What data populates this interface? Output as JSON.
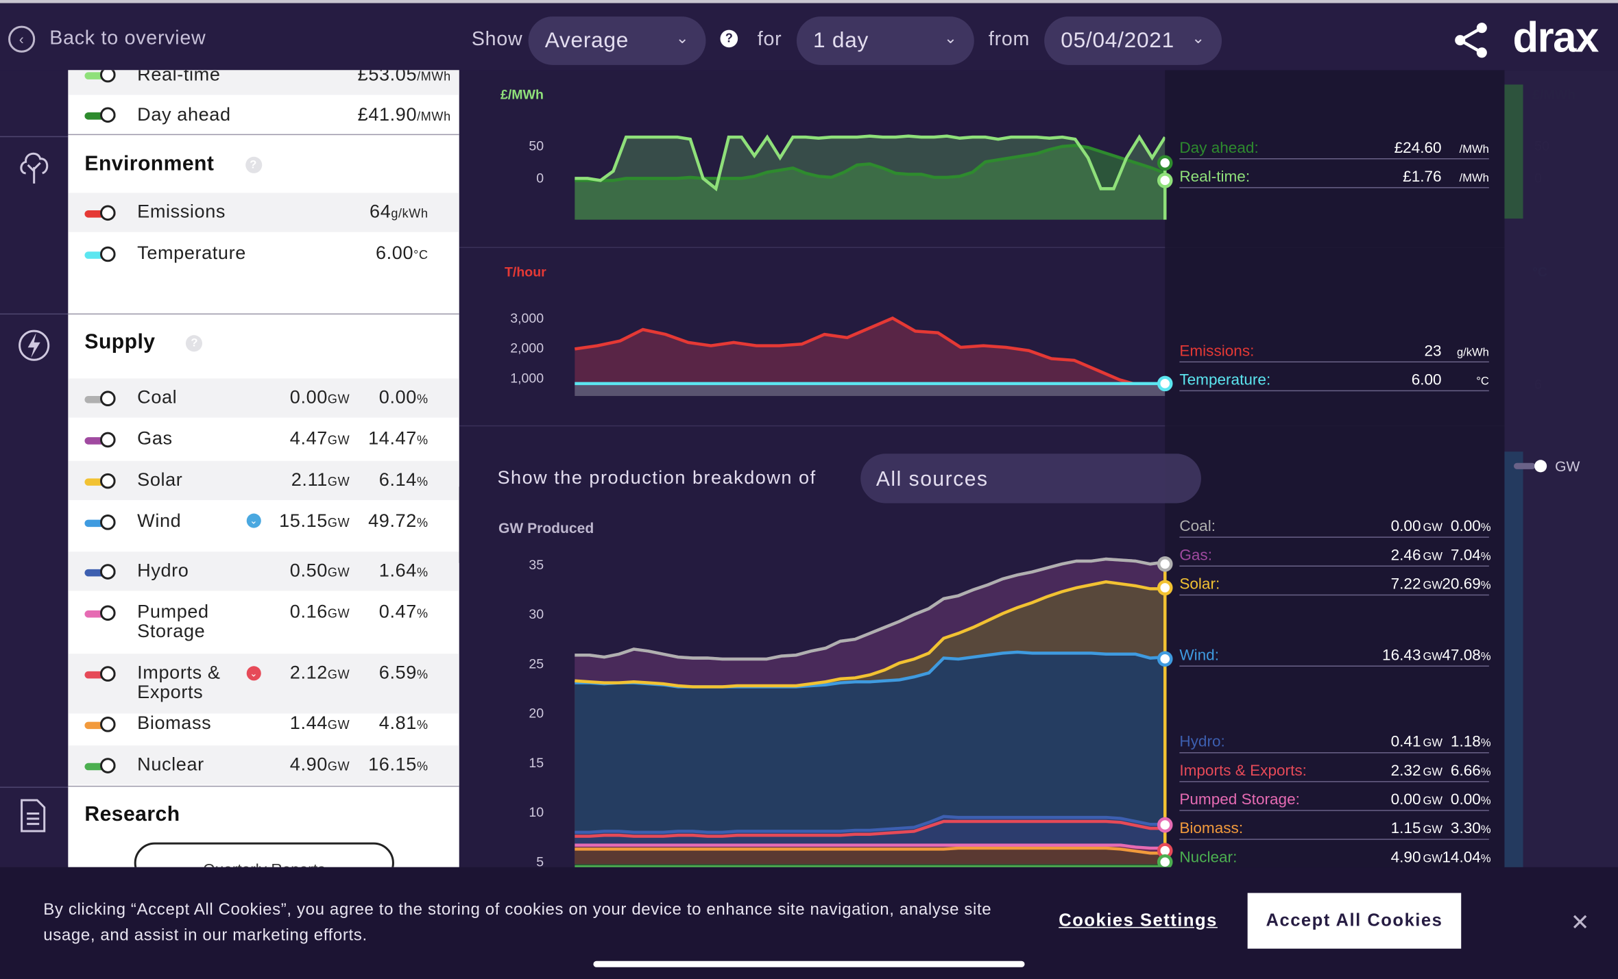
{
  "topbar": {
    "back": "Back to overview",
    "show": "Show",
    "show_value": "Average",
    "for": "for",
    "for_value": "1 day",
    "from": "from",
    "from_value": "05/04/2021",
    "logo": "drax",
    "icons": [
      "back-arrow-icon",
      "question-icon",
      "chevron-down-icon",
      "share-icon"
    ]
  },
  "market": {
    "items": [
      {
        "label": "Real-time",
        "value": "£53.05",
        "unit": "/MWh",
        "color": "#8fe07a"
      },
      {
        "label": "Day ahead",
        "value": "£41.90",
        "unit": "/MWh",
        "color": "#2e8b2e"
      }
    ]
  },
  "environment": {
    "title": "Environment",
    "items": [
      {
        "label": "Emissions",
        "value": "64",
        "unit": "g/kWh",
        "color": "#e53935"
      },
      {
        "label": "Temperature",
        "value": "6.00",
        "unit": "°C",
        "color": "#5ce6f0"
      }
    ]
  },
  "supply": {
    "title": "Supply",
    "unit": "GW",
    "pct": "%",
    "items": [
      {
        "label": "Coal",
        "gw": "0.00",
        "pct": "0.00",
        "color": "#b0b0b0"
      },
      {
        "label": "Gas",
        "gw": "4.47",
        "pct": "14.47",
        "color": "#a04aa0"
      },
      {
        "label": "Solar",
        "gw": "2.11",
        "pct": "6.14",
        "color": "#f2c232"
      },
      {
        "label": "Wind",
        "gw": "15.15",
        "pct": "49.72",
        "color": "#3f9be0"
      },
      {
        "label": "Hydro",
        "gw": "0.50",
        "pct": "1.64",
        "color": "#3d5fb0"
      },
      {
        "label": "Pumped\nStorage",
        "gw": "0.16",
        "pct": "0.47",
        "color": "#e66bb3"
      },
      {
        "label": "Imports &\nExports",
        "gw": "2.12",
        "pct": "6.59",
        "color": "#e64a58"
      },
      {
        "label": "Biomass",
        "gw": "1.44",
        "pct": "4.81",
        "color": "#f29a3c"
      },
      {
        "label": "Nuclear",
        "gw": "4.90",
        "pct": "16.15",
        "color": "#4caf50"
      }
    ]
  },
  "research": {
    "title": "Research",
    "button": "Quarterly Reports"
  },
  "price_chart": {
    "unit_left": "£/MWh",
    "unit_right": "£/MWh",
    "ticks": [
      "50",
      "0"
    ],
    "tooltip": [
      {
        "label": "Day ahead:",
        "value": "£24.60",
        "unit": "/MWh",
        "color": "#2e8b2e"
      },
      {
        "label": "Real-time:",
        "value": "£1.76",
        "unit": "/MWh",
        "color": "#8fe07a"
      }
    ]
  },
  "env_chart": {
    "unit_left": "T/hour",
    "unit_right": "°C",
    "ticks": [
      "3,000",
      "2,000",
      "1,000"
    ],
    "right_tick": "6",
    "tooltip": [
      {
        "label": "Emissions:",
        "value": "23",
        "unit": "g/kWh",
        "color": "#e53935"
      },
      {
        "label": "Temperature:",
        "value": "6.00",
        "unit": "°C",
        "color": "#5ce6f0"
      }
    ]
  },
  "breakdown": {
    "label": "Show the production breakdown of",
    "select": "All sources",
    "ylabel": "GW Produced",
    "toggle_label": "GW",
    "ticks": [
      "35",
      "30",
      "25",
      "20",
      "15",
      "10",
      "5"
    ],
    "tooltip": [
      {
        "label": "Coal:",
        "gw": "0.00",
        "pct": "0.00",
        "color": "#b0b0b0"
      },
      {
        "label": "Gas:",
        "gw": "2.46",
        "pct": "7.04",
        "color": "#a04aa0"
      },
      {
        "label": "Solar:",
        "gw": "7.22",
        "pct": "20.69",
        "color": "#f2c232"
      },
      {
        "label": "Wind:",
        "gw": "16.43",
        "pct": "47.08",
        "color": "#3f9be0"
      },
      {
        "label": "Hydro:",
        "gw": "0.41",
        "pct": "1.18",
        "color": "#3d5fb0"
      },
      {
        "label": "Imports & Exports:",
        "gw": "2.32",
        "pct": "6.66",
        "color": "#e64a58"
      },
      {
        "label": "Pumped Storage:",
        "gw": "0.00",
        "pct": "0.00",
        "color": "#e66bb3"
      },
      {
        "label": "Biomass:",
        "gw": "1.15",
        "pct": "3.30",
        "color": "#f29a3c"
      },
      {
        "label": "Nuclear:",
        "gw": "4.90",
        "pct": "14.04",
        "color": "#4caf50"
      }
    ]
  },
  "chart_data": [
    {
      "type": "line",
      "title": "",
      "ylabel": "£/MWh",
      "ylim": [
        -20,
        80
      ],
      "x": [
        0,
        1,
        2,
        3,
        4,
        5,
        6,
        7,
        8,
        9,
        10,
        11,
        12,
        13,
        14,
        15,
        16,
        17,
        18,
        19,
        20,
        21,
        22,
        23,
        24,
        25,
        26,
        27,
        28,
        29,
        30,
        31,
        32,
        33,
        34,
        35,
        36,
        37,
        38,
        39,
        40,
        41,
        42,
        43,
        44,
        45,
        46
      ],
      "series": [
        {
          "name": "Real-time",
          "values": [
            20,
            20,
            18,
            27,
            60,
            60,
            60,
            60,
            60,
            58,
            20,
            10,
            60,
            60,
            42,
            60,
            40,
            60,
            60,
            59,
            60,
            60,
            60,
            61,
            60,
            60,
            61,
            60,
            60,
            61,
            59,
            60,
            60,
            58,
            60,
            60,
            60,
            59,
            60,
            58,
            40,
            10,
            10,
            40,
            60,
            40,
            60
          ]
        },
        {
          "name": "Day ahead",
          "values": [
            18,
            18,
            18,
            18,
            20,
            20,
            20,
            20,
            20,
            21,
            20,
            20,
            20,
            20,
            22,
            26,
            28,
            30,
            25,
            22,
            21,
            26,
            33,
            34,
            30,
            25,
            24,
            24,
            21,
            21,
            22,
            26,
            36,
            38,
            40,
            42,
            44,
            48,
            51,
            52,
            50,
            46,
            42,
            38,
            34,
            30,
            25
          ]
        }
      ]
    },
    {
      "type": "area",
      "ylabel": "T/hour",
      "ylim": [
        0,
        3500
      ],
      "x": [
        0,
        1,
        2,
        3,
        4,
        5,
        6,
        7,
        8,
        9,
        10,
        11,
        12,
        13,
        14,
        15,
        16,
        17,
        18,
        19,
        20,
        21,
        22,
        23,
        24,
        25,
        26
      ],
      "series": [
        {
          "name": "Emissions",
          "values": [
            1450,
            1550,
            1700,
            2050,
            1900,
            1650,
            1550,
            1650,
            1550,
            1550,
            1600,
            1900,
            1800,
            2100,
            2400,
            2000,
            1950,
            1500,
            1550,
            1500,
            1400,
            1150,
            1100,
            800,
            500,
            300,
            200
          ]
        },
        {
          "name": "Temperature",
          "values": [
            6,
            6,
            6,
            6,
            6,
            6,
            6,
            6,
            6,
            6,
            6,
            6,
            6,
            6,
            6,
            6,
            6,
            6,
            6,
            6,
            6,
            6,
            6,
            6,
            6,
            6,
            6
          ]
        }
      ]
    },
    {
      "type": "area",
      "ylabel": "GW Produced",
      "ylim": [
        3,
        37
      ],
      "x": [
        0,
        1,
        2,
        3,
        4,
        5,
        6,
        7,
        8,
        9,
        10,
        11,
        12,
        13,
        14,
        15,
        16,
        17,
        18,
        19,
        20,
        21,
        22,
        23,
        24,
        25,
        26,
        27,
        28,
        29,
        30,
        31,
        32,
        33,
        34,
        35,
        36,
        37,
        38,
        39,
        40
      ],
      "series": [
        {
          "name": "Nuclear",
          "values": [
            4.4,
            4.4,
            4.4,
            4.4,
            4.4,
            4.4,
            4.4,
            4.4,
            4.4,
            4.4,
            4.4,
            4.4,
            4.4,
            4.4,
            4.4,
            4.4,
            4.4,
            4.4,
            4.4,
            4.4,
            4.4,
            4.4,
            4.4,
            4.4,
            4.4,
            4.4,
            4.4,
            4.4,
            4.4,
            4.4,
            4.4,
            4.4,
            4.4,
            4.4,
            4.4,
            4.4,
            4.4,
            4.4,
            4.4,
            4.4,
            4.4
          ]
        },
        {
          "name": "Biomass",
          "values": [
            6.2,
            6.2,
            6.2,
            6.2,
            6.2,
            6.2,
            6.2,
            6.2,
            6.2,
            6.2,
            6.2,
            6.2,
            6.2,
            6.2,
            6.2,
            6.2,
            6.2,
            6.2,
            6.2,
            6.2,
            6.2,
            6.2,
            6.2,
            6.2,
            6.2,
            6.2,
            6.3,
            6.3,
            6.3,
            6.3,
            6.3,
            6.3,
            6.3,
            6.3,
            6.3,
            6.3,
            6.3,
            6.2,
            6.0,
            5.8,
            5.8
          ]
        },
        {
          "name": "Pumped Storage",
          "values": [
            6.6,
            6.6,
            6.6,
            6.6,
            6.6,
            6.6,
            6.6,
            6.6,
            6.6,
            6.6,
            6.6,
            6.6,
            6.6,
            6.6,
            6.6,
            6.6,
            6.6,
            6.6,
            6.6,
            6.6,
            6.6,
            6.6,
            6.6,
            6.6,
            6.6,
            6.6,
            6.6,
            6.6,
            6.6,
            6.6,
            6.6,
            6.6,
            6.6,
            6.6,
            6.6,
            6.6,
            6.6,
            6.6,
            6.4,
            6.3,
            6.3
          ]
        },
        {
          "name": "Imports & Exports",
          "values": [
            7.5,
            7.5,
            7.6,
            7.6,
            7.5,
            7.5,
            7.5,
            7.6,
            7.6,
            7.5,
            7.5,
            7.6,
            7.6,
            7.6,
            7.6,
            7.6,
            7.6,
            7.6,
            7.6,
            7.7,
            7.7,
            7.8,
            7.9,
            8.0,
            8.5,
            9.0,
            9.0,
            9.0,
            9.0,
            9.0,
            9.0,
            9.0,
            9.0,
            9.0,
            9.0,
            9.0,
            9.0,
            8.9,
            8.6,
            8.3,
            8.3
          ]
        },
        {
          "name": "Hydro",
          "values": [
            7.9,
            7.9,
            8.0,
            8.0,
            7.9,
            7.9,
            7.9,
            8.0,
            8.0,
            7.9,
            7.9,
            8.0,
            8.0,
            8.0,
            8.0,
            8.0,
            8.0,
            8.0,
            8.0,
            8.1,
            8.1,
            8.2,
            8.3,
            8.4,
            8.9,
            9.5,
            9.4,
            9.4,
            9.4,
            9.4,
            9.4,
            9.4,
            9.4,
            9.4,
            9.4,
            9.4,
            9.4,
            9.3,
            9.0,
            8.7,
            8.7
          ]
        },
        {
          "name": "Wind",
          "values": [
            23.0,
            23.0,
            22.9,
            23.0,
            23.0,
            22.9,
            22.8,
            22.6,
            22.6,
            22.6,
            22.6,
            22.6,
            22.6,
            22.6,
            22.6,
            22.6,
            22.7,
            22.8,
            23.0,
            23.1,
            23.1,
            23.2,
            23.3,
            23.6,
            24.0,
            25.5,
            25.4,
            25.6,
            25.8,
            26.0,
            26.1,
            26.0,
            26.0,
            26.0,
            26.0,
            26.0,
            25.9,
            25.9,
            25.9,
            25.5,
            25.6
          ]
        },
        {
          "name": "Solar",
          "values": [
            23.2,
            23.1,
            23.0,
            23.0,
            23.1,
            23.0,
            22.9,
            22.7,
            22.6,
            22.6,
            22.6,
            22.7,
            22.7,
            22.7,
            22.7,
            22.7,
            22.9,
            23.1,
            23.4,
            23.5,
            23.8,
            24.3,
            25.0,
            25.4,
            26.0,
            27.5,
            28.0,
            28.6,
            29.3,
            30.0,
            30.6,
            31.1,
            31.7,
            32.2,
            32.6,
            32.9,
            33.2,
            33.0,
            32.8,
            32.5,
            32.5
          ]
        },
        {
          "name": "Gas",
          "values": [
            25.8,
            25.8,
            25.6,
            25.9,
            26.4,
            26.2,
            25.9,
            25.6,
            25.5,
            25.5,
            25.4,
            25.4,
            25.4,
            25.4,
            25.7,
            25.8,
            26.2,
            26.5,
            27.2,
            27.4,
            28.0,
            28.6,
            29.2,
            29.9,
            30.5,
            31.5,
            31.8,
            32.4,
            32.9,
            33.5,
            33.9,
            34.2,
            34.6,
            35.0,
            35.3,
            35.3,
            35.5,
            35.4,
            35.3,
            35.0,
            35.2
          ]
        },
        {
          "name": "Coal",
          "values": [
            25.8,
            25.8,
            25.6,
            25.9,
            26.4,
            26.2,
            25.9,
            25.6,
            25.5,
            25.5,
            25.4,
            25.4,
            25.4,
            25.4,
            25.7,
            25.8,
            26.2,
            26.5,
            27.2,
            27.4,
            28.0,
            28.6,
            29.2,
            29.9,
            30.5,
            31.5,
            31.8,
            32.4,
            32.9,
            33.5,
            33.9,
            34.2,
            34.6,
            35.0,
            35.3,
            35.3,
            35.5,
            35.4,
            35.3,
            35.0,
            35.2
          ]
        }
      ]
    }
  ],
  "cookie": {
    "text": "By clicking “Accept All Cookies”, you agree to the storing of cookies on your device to enhance site navigation, analyse site usage, and assist in our marketing efforts.",
    "settings": "Cookies Settings",
    "accept": "Accept All Cookies",
    "close": "✕"
  }
}
